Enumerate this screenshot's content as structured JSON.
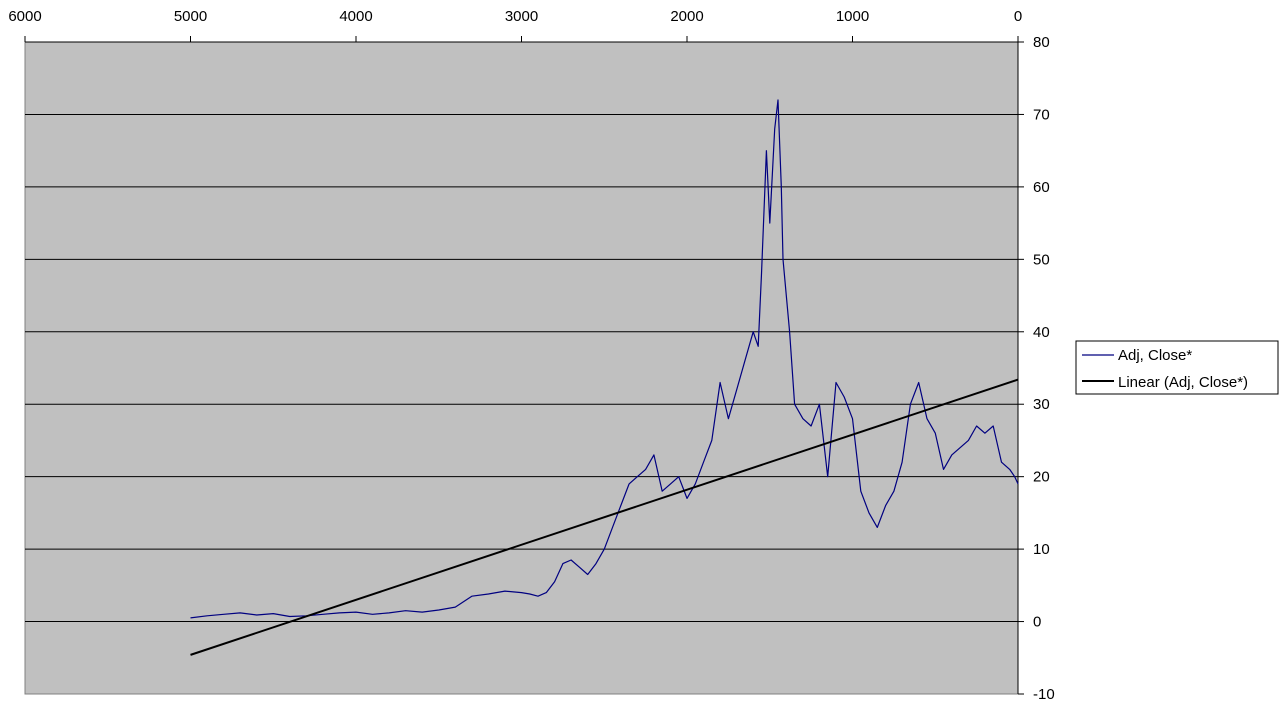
{
  "chart_data": {
    "type": "line",
    "title": "",
    "xlabel": "",
    "ylabel": "",
    "x_axis_position": "top",
    "x_axis_reversed": true,
    "y_axis_position": "right",
    "xlim": [
      0,
      6000
    ],
    "ylim": [
      -10,
      80
    ],
    "x_ticks": [
      "6000",
      "5000",
      "4000",
      "3000",
      "2000",
      "1000",
      "0"
    ],
    "y_ticks": [
      "80",
      "70",
      "60",
      "50",
      "40",
      "30",
      "20",
      "10",
      "0",
      "-10"
    ],
    "grid": "horizontal",
    "legend_position": "right",
    "colors": {
      "plot_background": "#c0c0c0",
      "adj_close": "#000080",
      "linear": "#000000",
      "grid": "#000000"
    },
    "series": [
      {
        "name": "Adj, Close*",
        "x": [
          5000,
          4900,
          4800,
          4700,
          4600,
          4500,
          4400,
          4300,
          4200,
          4100,
          4000,
          3900,
          3800,
          3700,
          3600,
          3500,
          3400,
          3300,
          3200,
          3100,
          3000,
          2950,
          2900,
          2850,
          2800,
          2750,
          2700,
          2650,
          2600,
          2550,
          2500,
          2450,
          2400,
          2350,
          2300,
          2250,
          2200,
          2150,
          2100,
          2050,
          2000,
          1950,
          1900,
          1850,
          1800,
          1750,
          1700,
          1650,
          1600,
          1570,
          1550,
          1520,
          1500,
          1470,
          1450,
          1430,
          1420,
          1400,
          1380,
          1350,
          1300,
          1250,
          1200,
          1150,
          1100,
          1050,
          1000,
          950,
          900,
          850,
          800,
          750,
          700,
          650,
          600,
          550,
          500,
          450,
          400,
          350,
          300,
          250,
          200,
          150,
          100,
          50,
          20,
          0
        ],
        "y": [
          0.5,
          0.8,
          1.0,
          1.2,
          0.9,
          1.1,
          0.7,
          0.8,
          1.0,
          1.2,
          1.3,
          1.0,
          1.2,
          1.5,
          1.3,
          1.6,
          2.0,
          3.5,
          3.8,
          4.2,
          4.0,
          3.8,
          3.5,
          4.0,
          5.5,
          8.0,
          8.5,
          7.5,
          6.5,
          8.0,
          10.0,
          13.0,
          16.0,
          19.0,
          20.0,
          21.0,
          23.0,
          18.0,
          19.0,
          20.0,
          17.0,
          19.0,
          22.0,
          25.0,
          33.0,
          28.0,
          32.0,
          36.0,
          40.0,
          38.0,
          48.0,
          65.0,
          55.0,
          68.0,
          72.0,
          60.0,
          50.0,
          45.0,
          40.0,
          30.0,
          28.0,
          27.0,
          30.0,
          20.0,
          33.0,
          31.0,
          28.0,
          18.0,
          15.0,
          13.0,
          16.0,
          18.0,
          22.0,
          30.0,
          33.0,
          28.0,
          26.0,
          21.0,
          23.0,
          24.0,
          25.0,
          27.0,
          26.0,
          27.0,
          22.0,
          21.0,
          20.0,
          19.0
        ]
      },
      {
        "name": "Linear (Adj, Close*)",
        "x": [
          5000,
          0
        ],
        "y": [
          -4.6,
          33.4
        ]
      }
    ]
  }
}
